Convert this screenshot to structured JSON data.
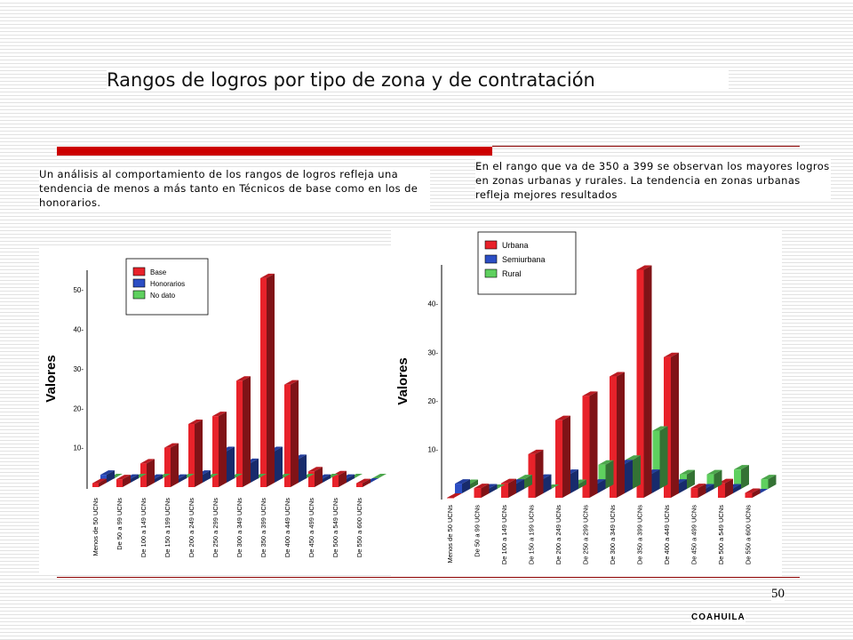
{
  "page": {
    "title": "Rangos de logros por tipo de zona y de contratación",
    "note_left": "Un análisis al comportamiento de los rangos de logros refleja una tendencia de menos a más tanto en Técnicos de base como en los de honorarios.",
    "note_right": "En el rango que va de 350 a 399 se observan los mayores logros en zonas urbanas y rurales. La tendencia en zonas urbanas refleja mejores resultados",
    "page_number": "50",
    "footer": "COAHUILA"
  },
  "colors": {
    "red": "#e8222a",
    "blue": "#2c4ec4",
    "green": "#5fd05f",
    "accent_bar": "#cc0000"
  },
  "chart_data": [
    {
      "type": "bar",
      "ylabel": "Valores",
      "ylim": [
        0,
        55
      ],
      "yticks": [
        10,
        20,
        30,
        40,
        50
      ],
      "tick_labels": [
        "10-",
        "20-",
        "30-",
        "40-",
        "50-"
      ],
      "legend_position": "top",
      "categories": [
        "Menos de 50 UCNs",
        "De 50 a 99 UCNs",
        "De 100 a 149 UCNs",
        "De 150 a 199 UCNs",
        "De 200 a 249 UCNs",
        "De 250 a 299 UCNs",
        "De 300 a 349 UCNs",
        "De 350 a 399 UCNs",
        "De 400 a 449 UCNs",
        "De 450 a 499 UCNs",
        "De 500 a 549 UCNs",
        "De 550 a 600 UCNs"
      ],
      "series": [
        {
          "name": "Base",
          "color": "#e8222a",
          "values": [
            1,
            2,
            6,
            10,
            16,
            18,
            27,
            53,
            26,
            4,
            3,
            1
          ]
        },
        {
          "name": "Honorarios",
          "color": "#2c4ec4",
          "values": [
            2,
            1,
            1,
            1,
            2,
            8,
            5,
            8,
            6,
            1,
            1,
            0
          ]
        },
        {
          "name": "No dato",
          "color": "#5fd05f",
          "values": [
            0,
            0,
            0,
            0,
            0,
            0,
            0,
            0,
            0,
            0,
            0,
            0
          ]
        }
      ]
    },
    {
      "type": "bar",
      "ylabel": "Valores",
      "ylim": [
        0,
        48
      ],
      "yticks": [
        10,
        20,
        30,
        40
      ],
      "tick_labels": [
        "10-",
        "20-",
        "30-",
        "40-"
      ],
      "legend_position": "top-left",
      "categories": [
        "Menos de 50 UCNs",
        "De 50 a 99 UCNs",
        "De 100 a 149 UCNs",
        "De 150 a 199 UCNs",
        "De 200 a 249 UCNs",
        "De 250 a 299 UCNs",
        "De 300 a 349 UCNs",
        "De 350 a 399 UCNs",
        "De 400 a 449 UCNs",
        "De 450 a 499 UCNs",
        "De 500 a 549 UCNs",
        "De 550 a 600 UCNs"
      ],
      "series": [
        {
          "name": "Urbana",
          "color": "#e8222a",
          "values": [
            0,
            2,
            3,
            9,
            16,
            21,
            25,
            47,
            29,
            2,
            3,
            1
          ]
        },
        {
          "name": "Semiurbana",
          "color": "#2c4ec4",
          "values": [
            2,
            1,
            2,
            3,
            4,
            2,
            6,
            4,
            2,
            1,
            1,
            0
          ]
        },
        {
          "name": "Rural",
          "color": "#5fd05f",
          "values": [
            1,
            0,
            2,
            0,
            1,
            5,
            6,
            12,
            3,
            3,
            4,
            2
          ]
        }
      ]
    }
  ]
}
